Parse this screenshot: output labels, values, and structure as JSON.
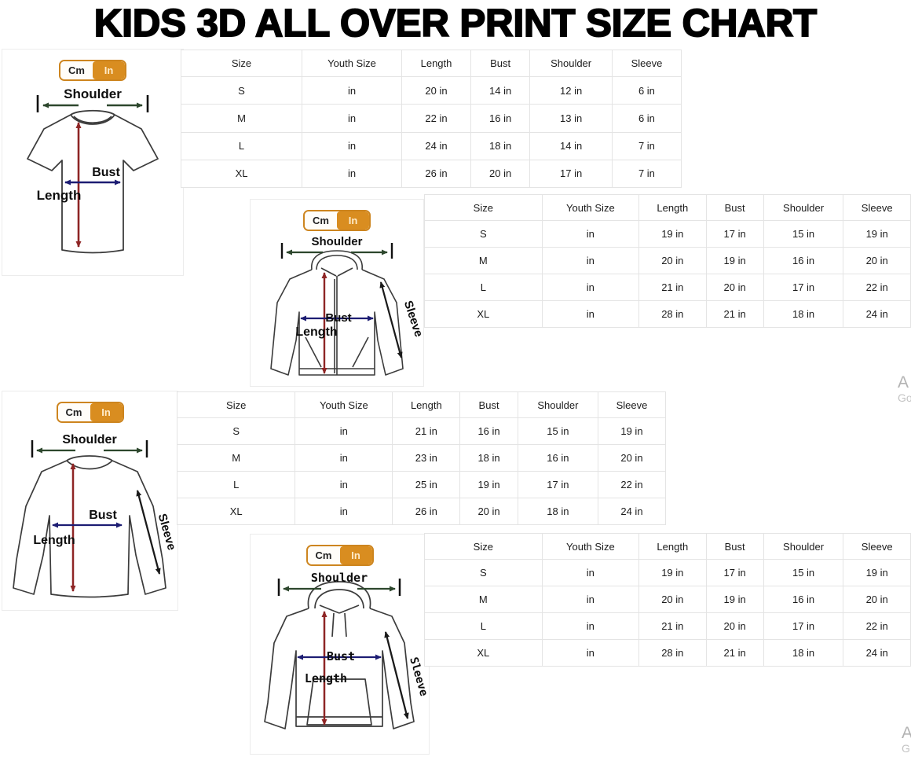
{
  "title": "KIDS 3D ALL OVER PRINT SIZE CHART",
  "unit_toggle": {
    "cm_label": "Cm",
    "in_label": "In",
    "active_unit": "In"
  },
  "colors": {
    "accent_orange": "#d98d20",
    "toggle_border": "#cd851f",
    "length_arrow": "#8e2525",
    "bust_arrow": "#1d1d73",
    "shoulder_arrow": "#2d472d",
    "sleeve_arrow": "#1a1a1a"
  },
  "diagram_labels": {
    "shoulder": "Shoulder",
    "bust": "Bust",
    "length": "Length",
    "sleeve": "Sleeve"
  },
  "watermark": {
    "top": {
      "line1": "A",
      "line2": "Go"
    },
    "bottom": {
      "line1": "A",
      "line2": "G"
    }
  },
  "sections": [
    {
      "garment": "t-shirt",
      "headers": [
        "Size",
        "Youth Size",
        "Length",
        "Bust",
        "Shoulder",
        "Sleeve"
      ],
      "rows": [
        [
          "S",
          "in",
          "20 in",
          "14 in",
          "12 in",
          "6 in"
        ],
        [
          "M",
          "in",
          "22 in",
          "16 in",
          "13 in",
          "6 in"
        ],
        [
          "L",
          "in",
          "24 in",
          "18 in",
          "14 in",
          "7 in"
        ],
        [
          "XL",
          "in",
          "26 in",
          "20 in",
          "17 in",
          "7 in"
        ]
      ]
    },
    {
      "garment": "zip-hoodie",
      "headers": [
        "Size",
        "Youth Size",
        "Length",
        "Bust",
        "Shoulder",
        "Sleeve"
      ],
      "rows": [
        [
          "S",
          "in",
          "19 in",
          "17 in",
          "15 in",
          "19 in"
        ],
        [
          "M",
          "in",
          "20 in",
          "19 in",
          "16 in",
          "20 in"
        ],
        [
          "L",
          "in",
          "21 in",
          "20 in",
          "17 in",
          "22 in"
        ],
        [
          "XL",
          "in",
          "28 in",
          "21 in",
          "18 in",
          "24 in"
        ]
      ]
    },
    {
      "garment": "long-sleeve-shirt",
      "headers": [
        "Size",
        "Youth Size",
        "Length",
        "Bust",
        "Shoulder",
        "Sleeve"
      ],
      "rows": [
        [
          "S",
          "in",
          "21 in",
          "16 in",
          "15 in",
          "19 in"
        ],
        [
          "M",
          "in",
          "23 in",
          "18 in",
          "16 in",
          "20 in"
        ],
        [
          "L",
          "in",
          "25 in",
          "19 in",
          "17 in",
          "22 in"
        ],
        [
          "XL",
          "in",
          "26 in",
          "20 in",
          "18 in",
          "24 in"
        ]
      ]
    },
    {
      "garment": "hoodie",
      "headers": [
        "Size",
        "Youth Size",
        "Length",
        "Bust",
        "Shoulder",
        "Sleeve"
      ],
      "rows": [
        [
          "S",
          "in",
          "19 in",
          "17 in",
          "15 in",
          "19 in"
        ],
        [
          "M",
          "in",
          "20 in",
          "19 in",
          "16 in",
          "20 in"
        ],
        [
          "L",
          "in",
          "21 in",
          "20 in",
          "17 in",
          "22 in"
        ],
        [
          "XL",
          "in",
          "28 in",
          "21 in",
          "18 in",
          "24 in"
        ]
      ]
    }
  ]
}
